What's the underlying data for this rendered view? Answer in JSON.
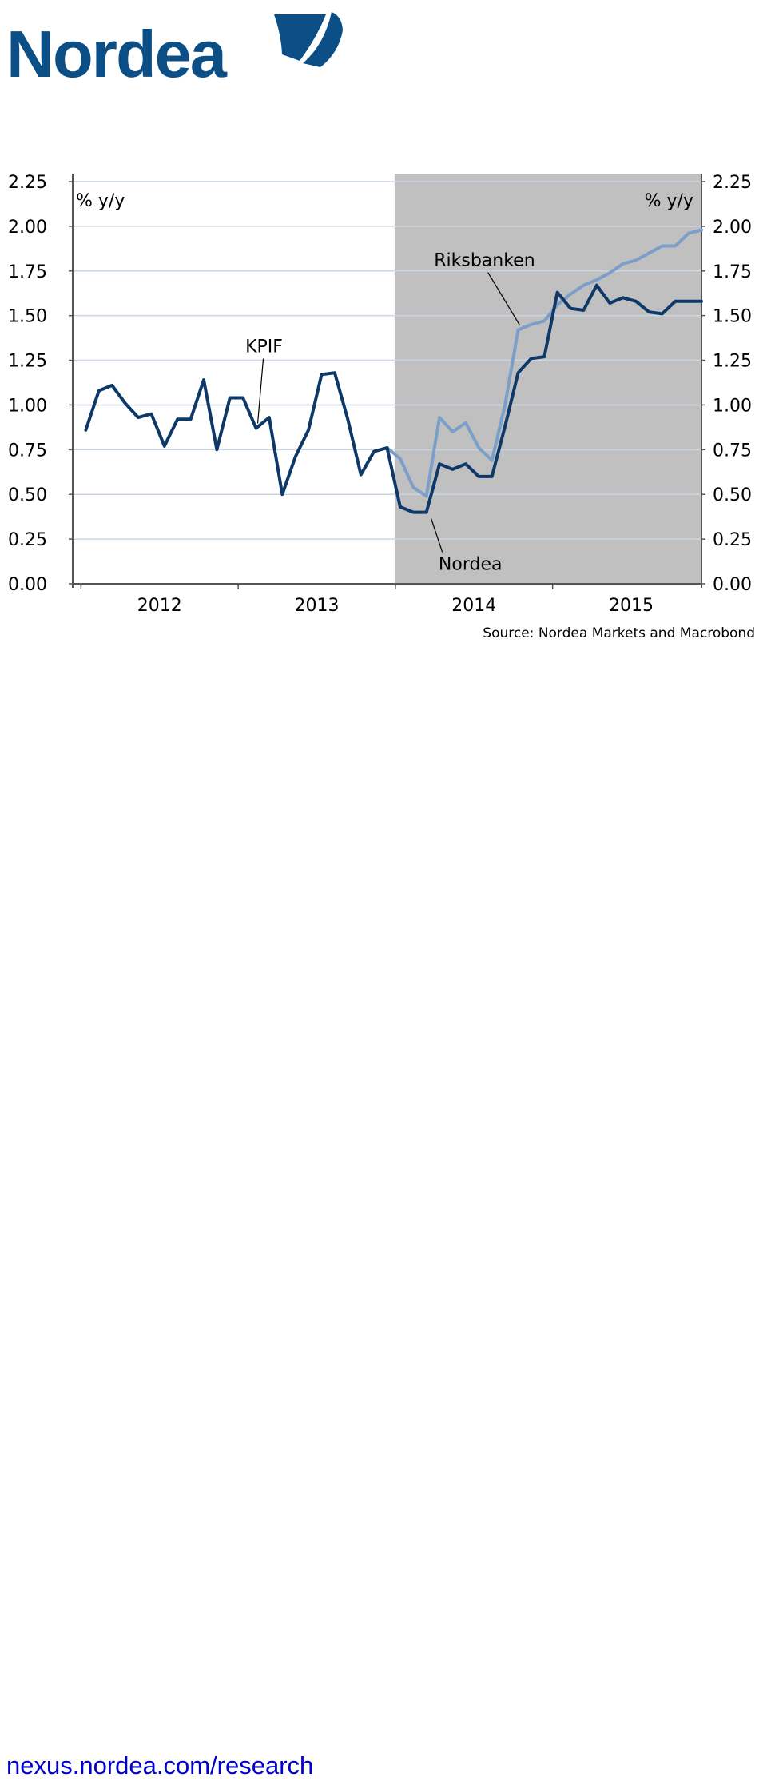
{
  "brand": {
    "name": "Nordea",
    "text_color": "#0b4f86",
    "sail_color": "#0b4f86"
  },
  "footer": {
    "link_text": "nexus.nordea.com/research",
    "link_color": "#0000c8"
  },
  "chart_data": {
    "type": "line",
    "title": "",
    "xlabel": "",
    "ylabel_left": "% y/y",
    "ylabel_right": "% y/y",
    "ylim": [
      0,
      2.25
    ],
    "yticks": [
      0.0,
      0.25,
      0.5,
      0.75,
      1.0,
      1.25,
      1.5,
      1.75,
      2.0,
      2.25
    ],
    "ytick_labels": [
      "0.00",
      "0.25",
      "0.50",
      "0.75",
      "1.00",
      "1.25",
      "1.50",
      "1.75",
      "2.00",
      "2.25"
    ],
    "xlim": [
      "2011-12",
      "2015-12"
    ],
    "xtick_labels": [
      "2012",
      "2013",
      "2014",
      "2015"
    ],
    "grid": true,
    "forecast_shade": {
      "from": "2014-01",
      "to": "2015-12",
      "color": "#c0c0c0"
    },
    "source": "Source: Nordea Markets and Macrobond",
    "series": [
      {
        "name": "KPIF",
        "color": "#0d3868",
        "points": [
          [
            "2012-01",
            0.86
          ],
          [
            "2012-02",
            1.08
          ],
          [
            "2012-03",
            1.11
          ],
          [
            "2012-04",
            1.01
          ],
          [
            "2012-05",
            0.93
          ],
          [
            "2012-06",
            0.95
          ],
          [
            "2012-07",
            0.77
          ],
          [
            "2012-08",
            0.92
          ],
          [
            "2012-09",
            0.92
          ],
          [
            "2012-10",
            1.14
          ],
          [
            "2012-11",
            0.75
          ],
          [
            "2012-12",
            1.04
          ],
          [
            "2013-01",
            1.04
          ],
          [
            "2013-02",
            0.87
          ],
          [
            "2013-03",
            0.93
          ],
          [
            "2013-04",
            0.5
          ],
          [
            "2013-05",
            0.71
          ],
          [
            "2013-06",
            0.86
          ],
          [
            "2013-07",
            1.17
          ],
          [
            "2013-08",
            1.18
          ],
          [
            "2013-09",
            0.92
          ],
          [
            "2013-10",
            0.61
          ],
          [
            "2013-11",
            0.74
          ],
          [
            "2013-12",
            0.76
          ]
        ]
      },
      {
        "name": "Riksbanken",
        "color": "#7b9fc8",
        "points": [
          [
            "2013-12",
            0.76
          ],
          [
            "2014-01",
            0.7
          ],
          [
            "2014-02",
            0.54
          ],
          [
            "2014-03",
            0.49
          ],
          [
            "2014-04",
            0.93
          ],
          [
            "2014-05",
            0.85
          ],
          [
            "2014-06",
            0.9
          ],
          [
            "2014-07",
            0.76
          ],
          [
            "2014-08",
            0.69
          ],
          [
            "2014-09",
            1.0
          ],
          [
            "2014-10",
            1.42
          ],
          [
            "2014-11",
            1.45
          ],
          [
            "2014-12",
            1.47
          ],
          [
            "2015-01",
            1.56
          ],
          [
            "2015-02",
            1.62
          ],
          [
            "2015-03",
            1.67
          ],
          [
            "2015-04",
            1.7
          ],
          [
            "2015-05",
            1.74
          ],
          [
            "2015-06",
            1.79
          ],
          [
            "2015-07",
            1.81
          ],
          [
            "2015-08",
            1.85
          ],
          [
            "2015-09",
            1.89
          ],
          [
            "2015-10",
            1.89
          ],
          [
            "2015-11",
            1.96
          ],
          [
            "2015-12",
            1.98
          ]
        ]
      },
      {
        "name": "Nordea",
        "color": "#0d3868",
        "points": [
          [
            "2013-12",
            0.76
          ],
          [
            "2014-01",
            0.43
          ],
          [
            "2014-02",
            0.4
          ],
          [
            "2014-03",
            0.4
          ],
          [
            "2014-04",
            0.67
          ],
          [
            "2014-05",
            0.64
          ],
          [
            "2014-06",
            0.67
          ],
          [
            "2014-07",
            0.6
          ],
          [
            "2014-08",
            0.6
          ],
          [
            "2014-09",
            0.88
          ],
          [
            "2014-10",
            1.18
          ],
          [
            "2014-11",
            1.26
          ],
          [
            "2014-12",
            1.27
          ],
          [
            "2015-01",
            1.63
          ],
          [
            "2015-02",
            1.54
          ],
          [
            "2015-03",
            1.53
          ],
          [
            "2015-04",
            1.67
          ],
          [
            "2015-05",
            1.57
          ],
          [
            "2015-06",
            1.6
          ],
          [
            "2015-07",
            1.58
          ],
          [
            "2015-08",
            1.52
          ],
          [
            "2015-09",
            1.51
          ],
          [
            "2015-10",
            1.58
          ],
          [
            "2015-11",
            1.58
          ],
          [
            "2015-12",
            1.58
          ]
        ]
      }
    ],
    "annotations": [
      {
        "text": "KPIF",
        "series": "KPIF",
        "at": "2013-02"
      },
      {
        "text": "Riksbanken",
        "series": "Riksbanken",
        "at": "2014-10"
      },
      {
        "text": "Nordea",
        "series": "Nordea",
        "at": "2014-03"
      }
    ]
  }
}
